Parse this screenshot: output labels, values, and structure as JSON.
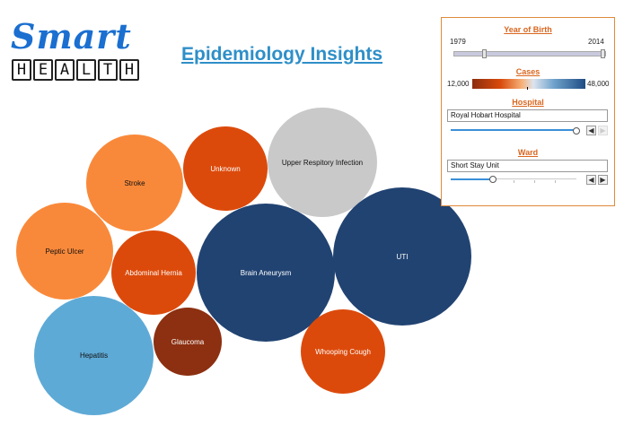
{
  "logo": {
    "word": "Smart",
    "letters": [
      "H",
      "E",
      "A",
      "L",
      "T",
      "H"
    ]
  },
  "title": "Epidemiology Insights",
  "bubbles": [
    {
      "label": "Stroke",
      "color": "#f9893a",
      "text_color": "#111111"
    },
    {
      "label": "Unknown",
      "color": "#dc4a0b",
      "text_color": "#ffffff"
    },
    {
      "label": "Upper Respitory Infection",
      "color": "#c9c9c9",
      "text_color": "#111111"
    },
    {
      "label": "Peptic Ulcer",
      "color": "#f9893a",
      "text_color": "#111111"
    },
    {
      "label": "Abdominal Hernia",
      "color": "#dc4a0b",
      "text_color": "#ffffff"
    },
    {
      "label": "Brain Aneurysm",
      "color": "#214372",
      "text_color": "#ffffff"
    },
    {
      "label": "UTI",
      "color": "#214372",
      "text_color": "#ffffff"
    },
    {
      "label": "Hepatitis",
      "color": "#5eaad6",
      "text_color": "#111111"
    },
    {
      "label": "Glaucoma",
      "color": "#8c3011",
      "text_color": "#ffffff"
    },
    {
      "label": "Whooping Cough",
      "color": "#dc4a0b",
      "text_color": "#ffffff"
    }
  ],
  "filters": {
    "year_of_birth": {
      "title": "Year of Birth",
      "min": "1979",
      "max": "2014"
    },
    "cases": {
      "title": "Cases",
      "min": "12,000",
      "max": "48,000"
    },
    "hospital": {
      "title": "Hospital",
      "selected": "Royal Hobart Hospital",
      "slider_level": 1.0
    },
    "ward": {
      "title": "Ward",
      "selected": "Short Stay Unit",
      "slider_level": 0.33
    }
  },
  "icons": {
    "prev": "chevron-left-icon",
    "next": "chevron-right-icon"
  }
}
